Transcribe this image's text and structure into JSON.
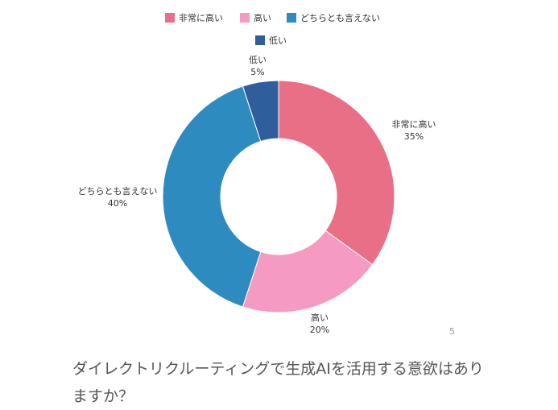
{
  "chart_data": {
    "type": "pie",
    "donut": true,
    "categories": [
      "非常に高い",
      "高い",
      "どちらとも言えない",
      "低い"
    ],
    "values": [
      35,
      20,
      40,
      5
    ],
    "value_labels": [
      "35%",
      "20%",
      "40%",
      "5%"
    ],
    "colors": [
      "#e96f87",
      "#f59bc1",
      "#2e8bbf",
      "#2e5f9c"
    ],
    "legend_position": "top-center"
  },
  "page_number": "5",
  "question": "ダイレクトリクルーティングで生成AIを活用する意欲はありますか？"
}
